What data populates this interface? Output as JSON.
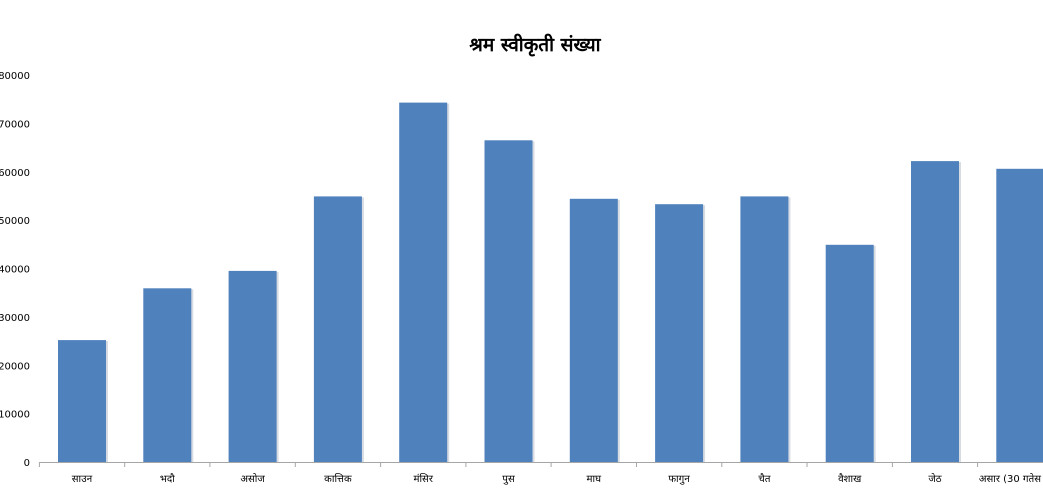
{
  "chart_data": {
    "type": "bar",
    "title": "श्रम स्वीकृती संख्या",
    "xlabel": "",
    "ylabel": "",
    "categories": [
      "साउन",
      "भदौ",
      "असोज",
      "कात्तिक",
      "मंसिर",
      "पुस",
      "माघ",
      "फागुन",
      "चैत",
      "वैशाख",
      "जेठ",
      "असार (30 गतेस"
    ],
    "values": [
      25200,
      35900,
      39500,
      54900,
      74300,
      66500,
      54400,
      53300,
      54900,
      44900,
      62200,
      60600
    ],
    "ylim": [
      0,
      80000
    ],
    "yticks": [
      "0",
      "10000",
      "20000",
      "30000",
      "40000",
      "50000",
      "60000",
      "70000",
      "80000"
    ],
    "grid": false,
    "legend": "none",
    "bar_color": "#4f81bd",
    "shadow_color": "#d7dbe2"
  }
}
